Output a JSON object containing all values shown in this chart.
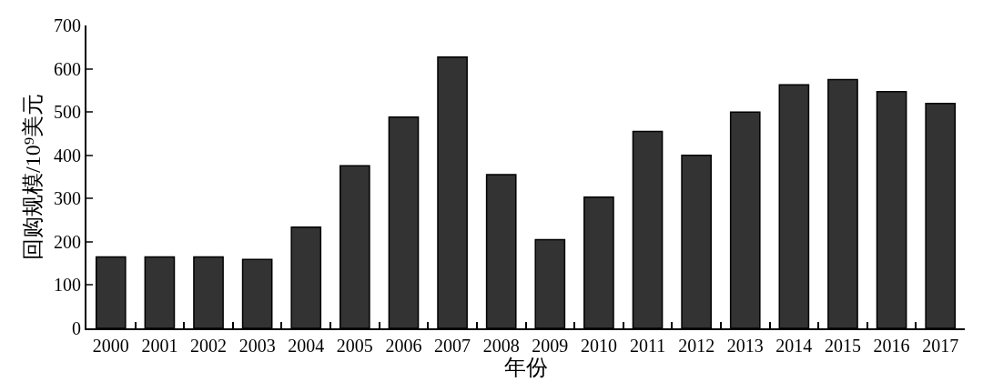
{
  "chart_data": {
    "type": "bar",
    "xlabel": "年份",
    "ylabel": "回购规模/10⁹美元",
    "categories": [
      "2000",
      "2001",
      "2002",
      "2003",
      "2004",
      "2005",
      "2006",
      "2007",
      "2008",
      "2009",
      "2010",
      "2011",
      "2012",
      "2013",
      "2014",
      "2015",
      "2016",
      "2017"
    ],
    "values": [
      165,
      165,
      165,
      159,
      234,
      376,
      488,
      627,
      355,
      205,
      303,
      455,
      400,
      500,
      563,
      575,
      547,
      520
    ],
    "color": "#333333",
    "ylim": [
      0,
      700
    ],
    "yticks": [
      0,
      100,
      200,
      300,
      400,
      500,
      600,
      700
    ]
  }
}
